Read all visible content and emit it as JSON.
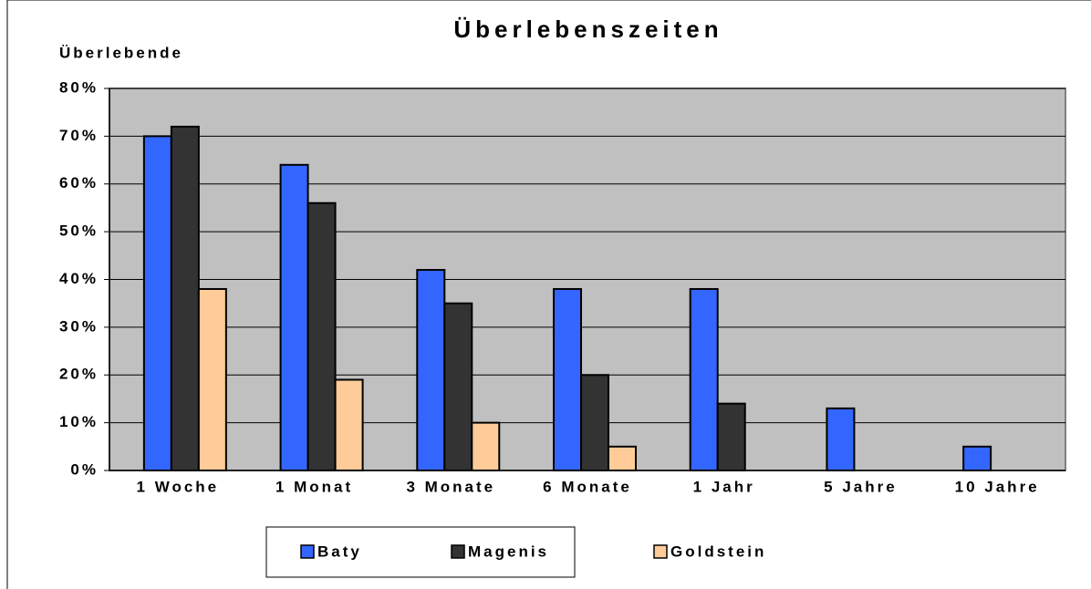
{
  "chart_data": {
    "type": "bar",
    "title": "Überlebenszeiten",
    "y_label": "Überlebende",
    "categories": [
      "1 Woche",
      "1 Monat",
      "3 Monate",
      "6 Monate",
      "1 Jahr",
      "5 Jahre",
      "10 Jahre"
    ],
    "series": [
      {
        "name": "Baty",
        "color": "#3366ff",
        "values": [
          70,
          64,
          42,
          38,
          38,
          13,
          5
        ]
      },
      {
        "name": "Magenis",
        "color": "#333333",
        "values": [
          72,
          56,
          35,
          20,
          14,
          null,
          null
        ]
      },
      {
        "name": "Goldstein",
        "color": "#ffcc99",
        "values": [
          38,
          19,
          10,
          5,
          null,
          null,
          null
        ]
      }
    ],
    "ylim": [
      0,
      80
    ],
    "yticks": [
      {
        "value": 0,
        "label": "0%"
      },
      {
        "value": 10,
        "label": "10%"
      },
      {
        "value": 20,
        "label": "20%"
      },
      {
        "value": 30,
        "label": "30%"
      },
      {
        "value": 40,
        "label": "40%"
      },
      {
        "value": 50,
        "label": "50%"
      },
      {
        "value": 60,
        "label": "60%"
      },
      {
        "value": 70,
        "label": "70%"
      },
      {
        "value": 80,
        "label": "80%"
      }
    ],
    "grid": true,
    "legend": "bottom"
  }
}
